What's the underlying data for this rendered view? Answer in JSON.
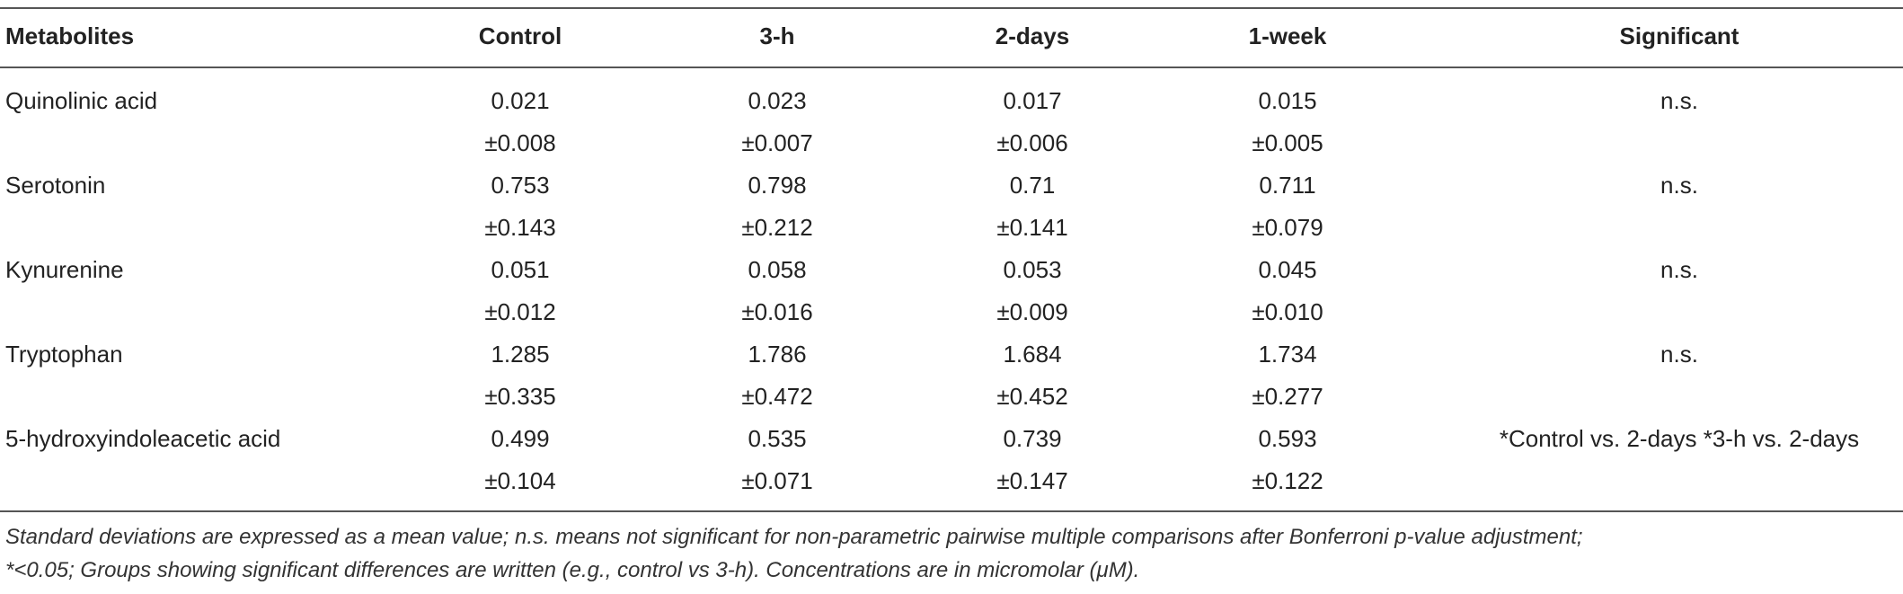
{
  "table": {
    "headers": {
      "metabolites": "Metabolites",
      "control": "Control",
      "h3": "3-h",
      "d2": "2-days",
      "w1": "1-week",
      "significant": "Significant"
    },
    "rows": [
      {
        "name": "Quinolinic acid",
        "control_mean": "0.021",
        "control_sd": "±0.008",
        "h3_mean": "0.023",
        "h3_sd": "±0.007",
        "d2_mean": "0.017",
        "d2_sd": "±0.006",
        "w1_mean": "0.015",
        "w1_sd": "±0.005",
        "significant": "n.s."
      },
      {
        "name": "Serotonin",
        "control_mean": "0.753",
        "control_sd": "±0.143",
        "h3_mean": "0.798",
        "h3_sd": "±0.212",
        "d2_mean": "0.71",
        "d2_sd": "±0.141",
        "w1_mean": "0.711",
        "w1_sd": "±0.079",
        "significant": "n.s."
      },
      {
        "name": "Kynurenine",
        "control_mean": "0.051",
        "control_sd": "±0.012",
        "h3_mean": "0.058",
        "h3_sd": "±0.016",
        "d2_mean": "0.053",
        "d2_sd": "±0.009",
        "w1_mean": "0.045",
        "w1_sd": "±0.010",
        "significant": "n.s."
      },
      {
        "name": "Tryptophan",
        "control_mean": "1.285",
        "control_sd": "±0.335",
        "h3_mean": "1.786",
        "h3_sd": "±0.472",
        "d2_mean": "1.684",
        "d2_sd": "±0.452",
        "w1_mean": "1.734",
        "w1_sd": "±0.277",
        "significant": "n.s."
      },
      {
        "name": "5-hydroxyindoleacetic acid",
        "control_mean": "0.499",
        "control_sd": "±0.104",
        "h3_mean": "0.535",
        "h3_sd": "±0.071",
        "d2_mean": "0.739",
        "d2_sd": "±0.147",
        "w1_mean": "0.593",
        "w1_sd": "±0.122",
        "significant": "*Control vs. 2-days *3-h vs. 2-days"
      }
    ]
  },
  "footnote": {
    "line1": "Standard deviations are expressed as a mean value; n.s. means not significant for non-parametric pairwise multiple comparisons after Bonferroni p-value adjustment;",
    "line2": "*<0.05; Groups showing significant differences are written (e.g., control vs 3-h). Concentrations are in micromolar (μM)."
  }
}
